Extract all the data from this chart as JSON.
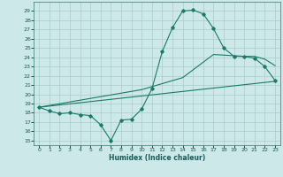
{
  "xlabel": "Humidex (Indice chaleur)",
  "bg_color": "#cce8e8",
  "line_color": "#1a7a6a",
  "grid_color": "#aacccc",
  "xlim": [
    -0.5,
    23.5
  ],
  "ylim": [
    14.5,
    30.0
  ],
  "xticks": [
    0,
    1,
    2,
    3,
    4,
    5,
    6,
    7,
    8,
    9,
    10,
    11,
    12,
    13,
    14,
    15,
    16,
    17,
    18,
    19,
    20,
    21,
    22,
    23
  ],
  "yticks": [
    15,
    16,
    17,
    18,
    19,
    20,
    21,
    22,
    23,
    24,
    25,
    26,
    27,
    28,
    29
  ],
  "curve1_x": [
    0,
    1,
    2,
    3,
    4,
    5,
    6,
    7,
    8,
    9,
    10,
    11,
    12,
    13,
    14,
    15,
    16,
    17,
    18,
    19,
    20,
    21,
    22,
    23
  ],
  "curve1_y": [
    18.6,
    18.2,
    17.9,
    18.0,
    17.8,
    17.7,
    16.7,
    15.0,
    17.2,
    17.3,
    18.4,
    20.6,
    24.6,
    27.2,
    29.0,
    29.1,
    28.7,
    27.1,
    25.0,
    24.1,
    24.1,
    23.9,
    23.0,
    21.5
  ],
  "curve2_x": [
    0,
    10,
    14,
    17,
    20,
    21,
    22,
    23
  ],
  "curve2_y": [
    18.6,
    20.5,
    21.8,
    24.3,
    24.1,
    24.1,
    23.8,
    23.1
  ],
  "curve3_x": [
    0,
    23
  ],
  "curve3_y": [
    18.6,
    21.4
  ]
}
